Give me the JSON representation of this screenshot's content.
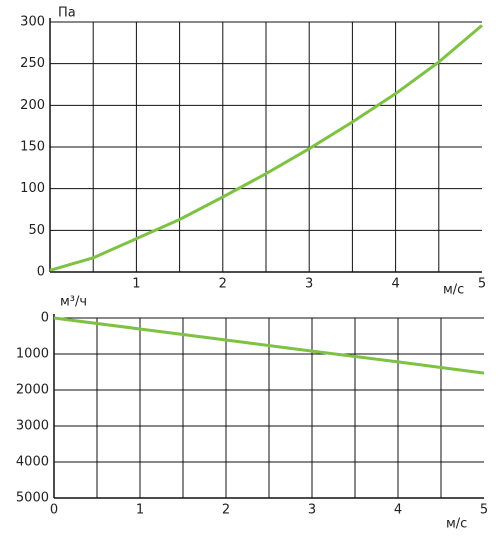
{
  "chart_data": [
    {
      "type": "line",
      "y_label": "Па",
      "x_label": "м/с",
      "x": [
        0,
        0.5,
        1,
        1.5,
        2,
        2.5,
        3,
        3.5,
        4,
        4.5,
        5
      ],
      "values": [
        2,
        17,
        40,
        63,
        90,
        118,
        148,
        180,
        214,
        252,
        296
      ],
      "color": "#7dc242",
      "xlim": [
        0,
        5
      ],
      "xticks": [
        1,
        2,
        3,
        4,
        5
      ],
      "xgrid": [
        0.5,
        1,
        1.5,
        2,
        2.5,
        3,
        3.5,
        4,
        4.5
      ],
      "ylim": [
        0,
        300
      ],
      "yticks": [
        0,
        50,
        100,
        150,
        200,
        250,
        300
      ],
      "y_reversed": false
    },
    {
      "type": "line",
      "y_label": "м³/ч",
      "x_label": "м/с",
      "x": [
        0,
        1,
        2,
        3,
        4,
        5
      ],
      "values": [
        0,
        305,
        610,
        920,
        1220,
        1530
      ],
      "color": "#7dc242",
      "xlim": [
        0,
        5
      ],
      "xticks": [
        0,
        1,
        2,
        3,
        4,
        5
      ],
      "xgrid": [
        0.5,
        1,
        1.5,
        2,
        2.5,
        3,
        3.5,
        4,
        4.5
      ],
      "ylim": [
        0,
        5000
      ],
      "yticks": [
        0,
        1000,
        2000,
        3000,
        4000,
        5000
      ],
      "y_reversed": true
    }
  ]
}
